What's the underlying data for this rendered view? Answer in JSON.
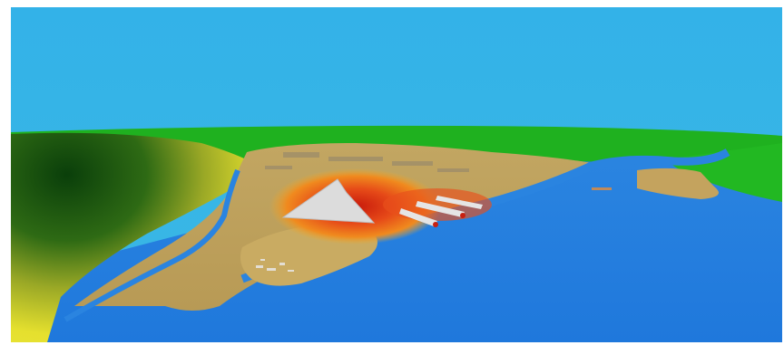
{
  "scene": {
    "kind": "3d-terrain-flood-visualization",
    "colors": {
      "sky": "#36b4e6",
      "water": "#1f7de0",
      "water_dark": "#1566c9",
      "land": "#c7a860",
      "land_light": "#d8bd72",
      "grass": "#1fb81f",
      "forest": "#0b4d0b",
      "hill_yellow": "#e8e430",
      "hotspot_outer": "#f0a020",
      "hotspot_mid": "#e8501c",
      "hotspot_inner": "#d02010",
      "structure": "#d8d8d8"
    },
    "icons": [
      "terrain-3d-icon"
    ]
  }
}
